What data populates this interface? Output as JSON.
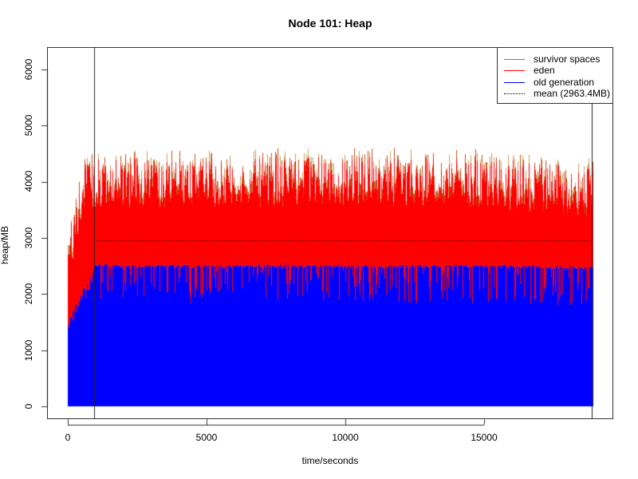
{
  "title": "Node 101: Heap",
  "chart_data": {
    "type": "area",
    "title": "Node 101: Heap",
    "xlabel": "time/seconds",
    "ylabel": "heap/MB",
    "xlim": [
      0,
      18900
    ],
    "ylim": [
      0,
      6000
    ],
    "xticks": [
      0,
      5000,
      10000,
      15000
    ],
    "yticks": [
      0,
      1000,
      2000,
      3000,
      4000,
      5000,
      6000
    ],
    "grid": false,
    "legend_position": "topright",
    "legend": [
      {
        "label": "survivor spaces",
        "color": "#00cc00",
        "style": "solid"
      },
      {
        "label": "eden",
        "color": "#ff0000",
        "style": "solid"
      },
      {
        "label": "old generation",
        "color": "#0000ff",
        "style": "solid"
      },
      {
        "label": "mean (2963.4MB)",
        "color": "#000000",
        "style": "dotted"
      }
    ],
    "mean_mb": 2963.4,
    "vertical_markers_seconds": [
      950,
      18880
    ],
    "series": [
      {
        "name": "old generation",
        "color": "#0000ff",
        "description": "Stacked base; sawtooth rising from ~1550MB at t=0 to ~2550MB by ~1000s, then oscillating roughly 1800-2550MB until ~18900s",
        "typical_range": [
          1800,
          2550
        ]
      },
      {
        "name": "eden",
        "color": "#ff0000",
        "description": "Stacked on old generation; total reaching ~3500-4500MB peaks",
        "typical_total_peak_range": [
          3500,
          4500
        ]
      },
      {
        "name": "survivor spaces",
        "color": "#00cc00",
        "description": "Thin layer on top of eden, ~0-200MB",
        "typical_range": [
          0,
          200
        ]
      }
    ],
    "x": [
      0,
      500,
      1000,
      2000,
      5000,
      10000,
      15000,
      18900
    ],
    "approx_old_gen_top": [
      1550,
      2100,
      2550,
      2530,
      2530,
      2530,
      2530,
      2500
    ],
    "approx_total_peak": [
      3000,
      4300,
      4450,
      4450,
      4450,
      4450,
      4450,
      4250
    ]
  },
  "axes": {
    "xticks": [
      "0",
      "5000",
      "10000",
      "15000"
    ],
    "yticks": [
      "0",
      "1000",
      "2000",
      "3000",
      "4000",
      "5000",
      "6000"
    ],
    "xlabel": "time/seconds",
    "ylabel": "heap/MB"
  },
  "legend": {
    "items": [
      {
        "label": "survivor spaces",
        "color": "#00cc00"
      },
      {
        "label": "eden",
        "color": "#ff0000"
      },
      {
        "label": "old generation",
        "color": "#0000ff"
      },
      {
        "label": "mean (2963.4MB)",
        "color": "#000000"
      }
    ]
  }
}
